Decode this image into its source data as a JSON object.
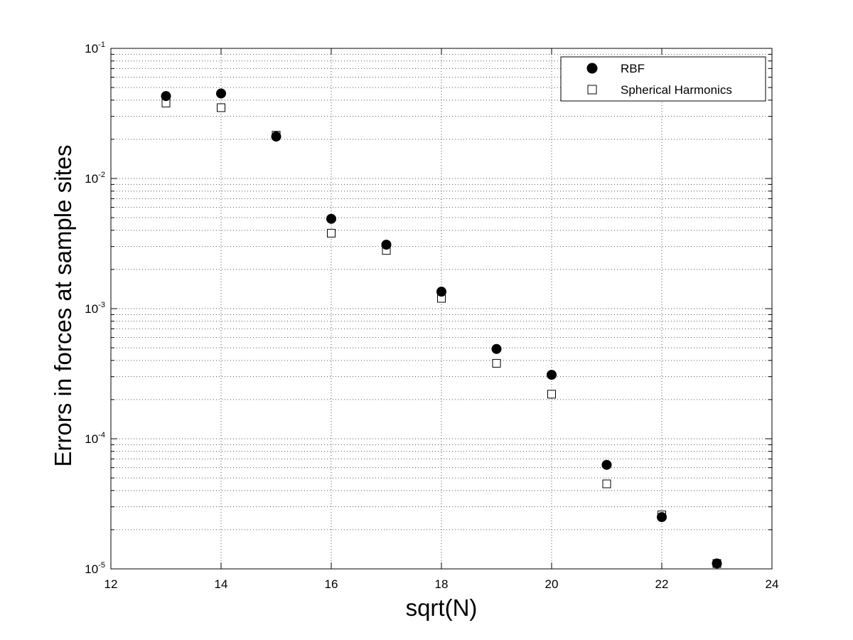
{
  "chart_data": {
    "type": "scatter",
    "title": "",
    "xlabel": "sqrt(N)",
    "ylabel": "Errors in forces at sample sites",
    "xlim": [
      12,
      24
    ],
    "ylim": [
      1e-05,
      0.1
    ],
    "yscale": "log",
    "grid": true,
    "legend_position": "top-right",
    "x_ticks": [
      12,
      14,
      16,
      18,
      20,
      22,
      24
    ],
    "y_ticks": [
      {
        "value": 1e-05,
        "base": "10",
        "exp": "-5"
      },
      {
        "value": 0.0001,
        "base": "10",
        "exp": "-4"
      },
      {
        "value": 0.001,
        "base": "10",
        "exp": "-3"
      },
      {
        "value": 0.01,
        "base": "10",
        "exp": "-2"
      },
      {
        "value": 0.1,
        "base": "10",
        "exp": "-1"
      }
    ],
    "series": [
      {
        "name": "RBF",
        "marker": "filled-circle",
        "color": "#000000",
        "x": [
          13,
          14,
          15,
          16,
          17,
          18,
          19,
          20,
          21,
          22,
          23
        ],
        "y": [
          0.043,
          0.045,
          0.021,
          0.0049,
          0.0031,
          0.00135,
          0.00049,
          0.00031,
          6.3e-05,
          2.5e-05,
          1.1e-05
        ]
      },
      {
        "name": "Spherical Harmonics",
        "marker": "open-square",
        "color": "#000000",
        "x": [
          13,
          14,
          15,
          16,
          17,
          18,
          19,
          20,
          21,
          22,
          23
        ],
        "y": [
          0.038,
          0.035,
          0.0215,
          0.0038,
          0.0028,
          0.0012,
          0.00038,
          0.00022,
          4.5e-05,
          2.6e-05,
          1.1e-05
        ]
      }
    ]
  }
}
